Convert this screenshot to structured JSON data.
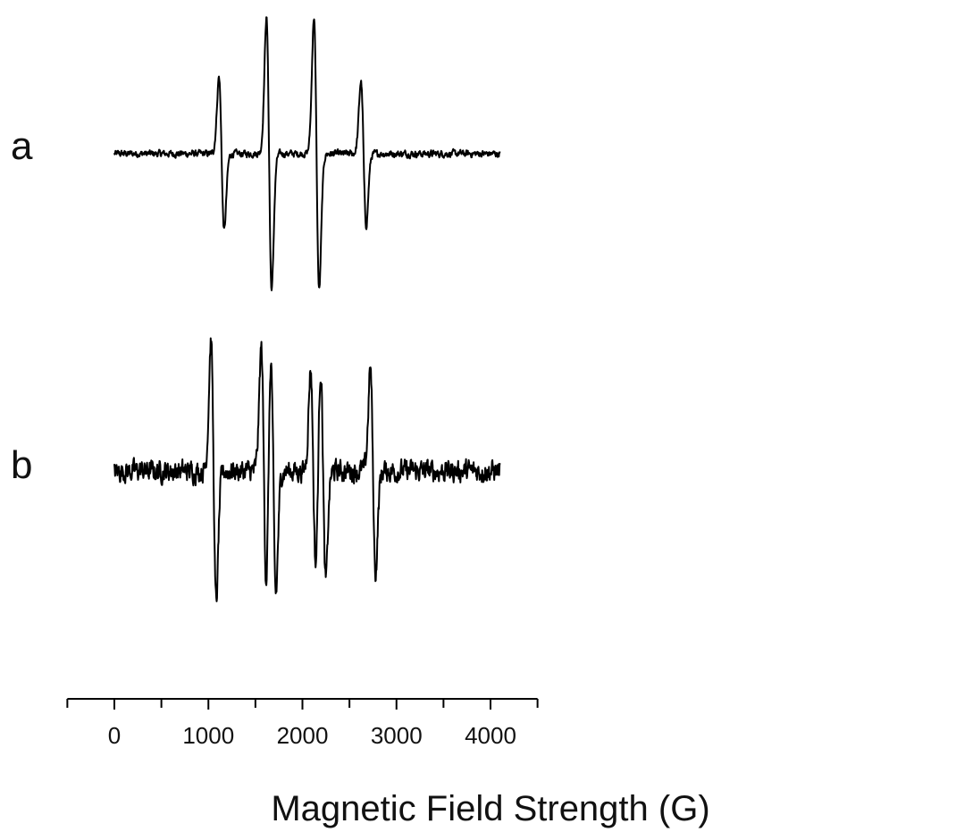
{
  "chart_data": {
    "type": "line",
    "title": "",
    "xlabel": "Magnetic Field Strength (G)",
    "ylabel": "",
    "xlim": [
      -500,
      4500
    ],
    "x_ticks": [
      0,
      1000,
      2000,
      3000,
      4000
    ],
    "grid": false,
    "legend": "none",
    "x_range_plotted": [
      0,
      4100
    ],
    "series": [
      {
        "name": "a",
        "baseline": 0,
        "noise": 0.035,
        "peaks": [
          {
            "center": 1140,
            "amplitude": 0.9
          },
          {
            "center": 1645,
            "amplitude": 1.6
          },
          {
            "center": 2150,
            "amplitude": 1.6
          },
          {
            "center": 2650,
            "amplitude": 0.85
          }
        ]
      },
      {
        "name": "b",
        "baseline": 0,
        "noise": 0.11,
        "peaks": [
          {
            "center": 1055,
            "amplitude": 1.55
          },
          {
            "center": 1590,
            "amplitude": 1.45
          },
          {
            "center": 1690,
            "amplitude": 1.45
          },
          {
            "center": 2115,
            "amplitude": 1.2
          },
          {
            "center": 2220,
            "amplitude": 1.3
          },
          {
            "center": 2750,
            "amplitude": 1.2
          }
        ]
      }
    ]
  }
}
